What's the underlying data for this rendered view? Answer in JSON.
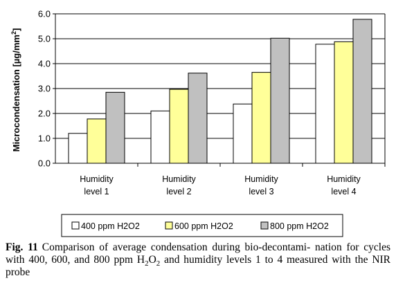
{
  "chart_data": {
    "type": "bar",
    "categories": [
      [
        "Humidity",
        "level 1"
      ],
      [
        "Humidity",
        "level 2"
      ],
      [
        "Humidity",
        "level 3"
      ],
      [
        "Humidity",
        "level 4"
      ]
    ],
    "series": [
      {
        "name": "400 ppm H2O2",
        "color": "#ffffff",
        "values": [
          1.2,
          2.1,
          2.38,
          4.78
        ]
      },
      {
        "name": "600 ppm H2O2",
        "color": "#ffff99",
        "values": [
          1.78,
          2.97,
          3.65,
          4.88
        ]
      },
      {
        "name": "800 ppm H2O2",
        "color": "#c0c0c0",
        "values": [
          2.85,
          3.62,
          5.02,
          5.78
        ]
      }
    ],
    "ylabel_prefix": "Microcondensation [µg/mm",
    "ylabel_sup": "2",
    "ylabel_suffix": "]",
    "ylim": [
      0,
      6
    ],
    "yticks": [
      "0.0",
      "1.0",
      "2.0",
      "3.0",
      "4.0",
      "5.0",
      "6.0"
    ],
    "grid": true,
    "legend_position": "bottom"
  },
  "caption": {
    "label": "Fig. 11",
    "text_before": "Comparison of average condensation during bio-decontami- nation for cycles with 400, 600, and 800 ppm H",
    "chem_sub1": "2",
    "chem_mid": "O",
    "chem_sub2": "2",
    "text_after": " and humidity levels 1 to 4 measured with the NIR probe"
  }
}
